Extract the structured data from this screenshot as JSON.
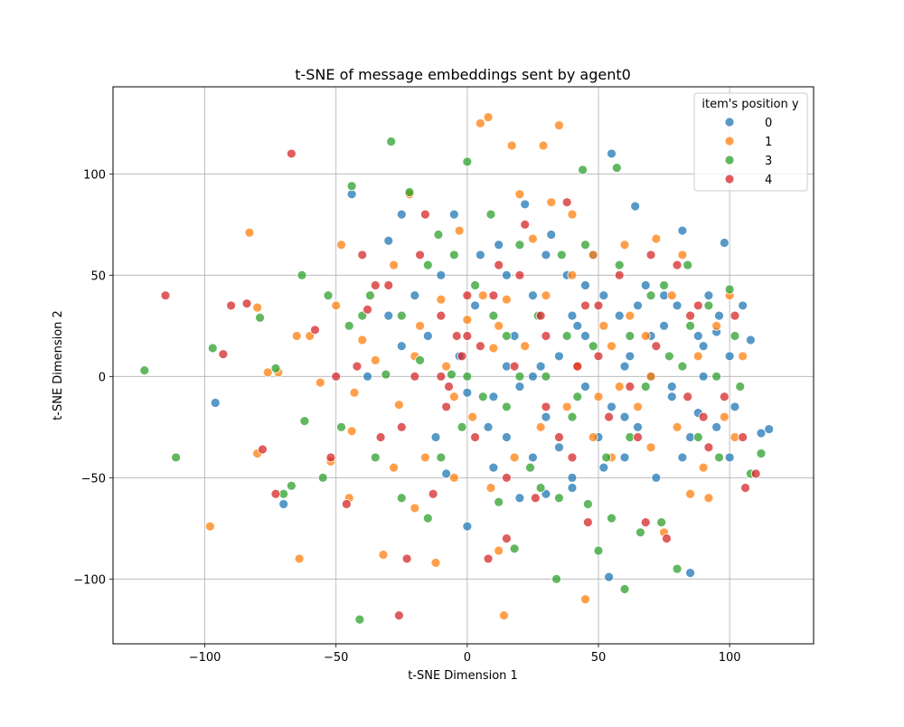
{
  "chart_data": {
    "type": "scatter",
    "title": "t-SNE of message embeddings sent by agent0",
    "xlabel": "t-SNE Dimension 1",
    "ylabel": "t-SNE Dimension 2",
    "xlim": [
      -135,
      132
    ],
    "ylim": [
      -132,
      143
    ],
    "xticks": [
      -100,
      -50,
      0,
      50,
      100
    ],
    "yticks": [
      -100,
      -50,
      0,
      50,
      100
    ],
    "grid": true,
    "legend": {
      "title": "item's position y",
      "placement": "top-right",
      "entries": [
        "0",
        "1",
        "3",
        "4"
      ]
    },
    "series": [
      {
        "name": "0",
        "color": "#1f77b4",
        "points": [
          [
            -96,
            -13
          ],
          [
            -70,
            -63
          ],
          [
            -44,
            90
          ],
          [
            -30,
            67
          ],
          [
            -25,
            80
          ],
          [
            -10,
            50
          ],
          [
            -5,
            80
          ],
          [
            -3,
            10
          ],
          [
            0,
            -8
          ],
          [
            3,
            35
          ],
          [
            8,
            -25
          ],
          [
            10,
            -10
          ],
          [
            12,
            65
          ],
          [
            15,
            50
          ],
          [
            15,
            -30
          ],
          [
            18,
            20
          ],
          [
            20,
            -5
          ],
          [
            22,
            85
          ],
          [
            25,
            40
          ],
          [
            25,
            -40
          ],
          [
            28,
            5
          ],
          [
            30,
            -20
          ],
          [
            32,
            70
          ],
          [
            35,
            10
          ],
          [
            35,
            -35
          ],
          [
            38,
            50
          ],
          [
            40,
            -50
          ],
          [
            42,
            25
          ],
          [
            45,
            -5
          ],
          [
            48,
            60
          ],
          [
            50,
            -30
          ],
          [
            52,
            40
          ],
          [
            55,
            110
          ],
          [
            55,
            -15
          ],
          [
            58,
            30
          ],
          [
            60,
            -40
          ],
          [
            62,
            10
          ],
          [
            64,
            84
          ],
          [
            65,
            -25
          ],
          [
            68,
            45
          ],
          [
            70,
            0
          ],
          [
            72,
            -50
          ],
          [
            75,
            25
          ],
          [
            78,
            -10
          ],
          [
            80,
            35
          ],
          [
            82,
            72
          ],
          [
            85,
            -30
          ],
          [
            88,
            20
          ],
          [
            90,
            0
          ],
          [
            92,
            40
          ],
          [
            95,
            -25
          ],
          [
            98,
            66
          ],
          [
            100,
            10
          ],
          [
            102,
            -15
          ],
          [
            105,
            35
          ],
          [
            108,
            18
          ],
          [
            112,
            -28
          ],
          [
            115,
            -26
          ],
          [
            85,
            -97
          ],
          [
            54,
            -99
          ],
          [
            40,
            -55
          ],
          [
            30,
            -58
          ],
          [
            -30,
            30
          ],
          [
            -20,
            40
          ],
          [
            -15,
            20
          ],
          [
            -12,
            -30
          ],
          [
            5,
            60
          ],
          [
            20,
            -60
          ],
          [
            45,
            45
          ],
          [
            60,
            -20
          ],
          [
            70,
            20
          ],
          [
            78,
            -5
          ],
          [
            88,
            -18
          ],
          [
            95,
            22
          ],
          [
            -38,
            0
          ],
          [
            -25,
            15
          ],
          [
            0,
            -74
          ],
          [
            15,
            5
          ],
          [
            30,
            60
          ],
          [
            45,
            20
          ],
          [
            60,
            5
          ],
          [
            75,
            40
          ],
          [
            90,
            15
          ],
          [
            100,
            -40
          ],
          [
            -8,
            -48
          ],
          [
            10,
            -45
          ],
          [
            25,
            0
          ],
          [
            40,
            30
          ],
          [
            52,
            -45
          ],
          [
            65,
            35
          ],
          [
            82,
            -40
          ],
          [
            96,
            30
          ]
        ]
      },
      {
        "name": "1",
        "color": "#ff7f0e",
        "points": [
          [
            -98,
            -74
          ],
          [
            -83,
            71
          ],
          [
            -80,
            34
          ],
          [
            -76,
            2
          ],
          [
            -72,
            2
          ],
          [
            -80,
            -38
          ],
          [
            -65,
            20
          ],
          [
            -64,
            -90
          ],
          [
            -56,
            -3
          ],
          [
            -52,
            -42
          ],
          [
            -48,
            65
          ],
          [
            -45,
            -60
          ],
          [
            -44,
            -27
          ],
          [
            -40,
            18
          ],
          [
            -32,
            -88
          ],
          [
            -28,
            55
          ],
          [
            -26,
            -14
          ],
          [
            -22,
            90
          ],
          [
            -20,
            10
          ],
          [
            -16,
            -40
          ],
          [
            -12,
            -92
          ],
          [
            -10,
            38
          ],
          [
            -8,
            5
          ],
          [
            -5,
            -50
          ],
          [
            -3,
            72
          ],
          [
            0,
            28
          ],
          [
            2,
            -20
          ],
          [
            5,
            125
          ],
          [
            8,
            128
          ],
          [
            9,
            -55
          ],
          [
            10,
            14
          ],
          [
            12,
            -86
          ],
          [
            14,
            -118
          ],
          [
            15,
            38
          ],
          [
            17,
            114
          ],
          [
            18,
            -40
          ],
          [
            22,
            15
          ],
          [
            25,
            68
          ],
          [
            28,
            -25
          ],
          [
            29,
            114
          ],
          [
            32,
            86
          ],
          [
            35,
            124
          ],
          [
            38,
            -15
          ],
          [
            40,
            50
          ],
          [
            42,
            5
          ],
          [
            45,
            -110
          ],
          [
            48,
            60
          ],
          [
            50,
            -10
          ],
          [
            52,
            25
          ],
          [
            55,
            -40
          ],
          [
            58,
            -5
          ],
          [
            62,
            30
          ],
          [
            65,
            -15
          ],
          [
            70,
            0
          ],
          [
            72,
            68
          ],
          [
            75,
            -77
          ],
          [
            78,
            40
          ],
          [
            82,
            60
          ],
          [
            85,
            -58
          ],
          [
            88,
            10
          ],
          [
            92,
            -60
          ],
          [
            95,
            25
          ],
          [
            98,
            -20
          ],
          [
            102,
            -30
          ],
          [
            105,
            10
          ],
          [
            -60,
            20
          ],
          [
            -50,
            35
          ],
          [
            -35,
            8
          ],
          [
            -18,
            25
          ],
          [
            -5,
            -10
          ],
          [
            20,
            90
          ],
          [
            60,
            65
          ],
          [
            80,
            -25
          ],
          [
            -43,
            -8
          ],
          [
            -28,
            -45
          ],
          [
            6,
            40
          ],
          [
            30,
            40
          ],
          [
            48,
            -30
          ],
          [
            68,
            20
          ],
          [
            90,
            -45
          ],
          [
            -20,
            -65
          ],
          [
            12,
            25
          ],
          [
            40,
            80
          ],
          [
            55,
            15
          ],
          [
            70,
            -35
          ],
          [
            100,
            40
          ]
        ]
      },
      {
        "name": "3",
        "color": "#2ca02c",
        "points": [
          [
            -123,
            3
          ],
          [
            -111,
            -40
          ],
          [
            -97,
            14
          ],
          [
            -79,
            29
          ],
          [
            -73,
            4
          ],
          [
            -70,
            -58
          ],
          [
            -67,
            -54
          ],
          [
            -63,
            50
          ],
          [
            -62,
            -22
          ],
          [
            -53,
            40
          ],
          [
            -48,
            -25
          ],
          [
            -44,
            94
          ],
          [
            -41,
            -120
          ],
          [
            -37,
            40
          ],
          [
            -31,
            1
          ],
          [
            -29,
            116
          ],
          [
            -25,
            -60
          ],
          [
            -22,
            91
          ],
          [
            -18,
            8
          ],
          [
            -15,
            -70
          ],
          [
            -11,
            70
          ],
          [
            -6,
            1
          ],
          [
            -2,
            -25
          ],
          [
            0,
            106
          ],
          [
            3,
            45
          ],
          [
            6,
            -10
          ],
          [
            9,
            80
          ],
          [
            12,
            -62
          ],
          [
            15,
            20
          ],
          [
            18,
            -85
          ],
          [
            20,
            65
          ],
          [
            24,
            -45
          ],
          [
            27,
            30
          ],
          [
            30,
            0
          ],
          [
            34,
            -100
          ],
          [
            36,
            60
          ],
          [
            40,
            -20
          ],
          [
            44,
            102
          ],
          [
            46,
            -63
          ],
          [
            48,
            15
          ],
          [
            50,
            -86
          ],
          [
            53,
            -40
          ],
          [
            57,
            103
          ],
          [
            60,
            -105
          ],
          [
            62,
            20
          ],
          [
            66,
            -77
          ],
          [
            70,
            40
          ],
          [
            74,
            -72
          ],
          [
            77,
            10
          ],
          [
            80,
            -95
          ],
          [
            84,
            55
          ],
          [
            88,
            -30
          ],
          [
            92,
            35
          ],
          [
            96,
            -40
          ],
          [
            100,
            43
          ],
          [
            104,
            -5
          ],
          [
            108,
            -48
          ],
          [
            112,
            -38
          ],
          [
            -40,
            30
          ],
          [
            -25,
            30
          ],
          [
            -10,
            -40
          ],
          [
            10,
            30
          ],
          [
            35,
            -60
          ],
          [
            55,
            -70
          ],
          [
            75,
            45
          ],
          [
            95,
            0
          ],
          [
            -55,
            -50
          ],
          [
            -35,
            -40
          ],
          [
            0,
            0
          ],
          [
            28,
            -55
          ],
          [
            45,
            65
          ],
          [
            68,
            -5
          ],
          [
            85,
            25
          ],
          [
            -5,
            60
          ],
          [
            20,
            0
          ],
          [
            42,
            -10
          ],
          [
            62,
            -30
          ],
          [
            82,
            5
          ],
          [
            102,
            20
          ],
          [
            -45,
            25
          ],
          [
            -15,
            55
          ],
          [
            15,
            -15
          ],
          [
            38,
            20
          ],
          [
            58,
            55
          ]
        ]
      },
      {
        "name": "4",
        "color": "#d62728",
        "points": [
          [
            -115,
            40
          ],
          [
            -93,
            11
          ],
          [
            -90,
            35
          ],
          [
            -84,
            36
          ],
          [
            -78,
            -36
          ],
          [
            -73,
            -58
          ],
          [
            -67,
            110
          ],
          [
            -58,
            23
          ],
          [
            -52,
            -40
          ],
          [
            -46,
            -63
          ],
          [
            -42,
            5
          ],
          [
            -38,
            33
          ],
          [
            -33,
            -30
          ],
          [
            -30,
            45
          ],
          [
            -26,
            -118
          ],
          [
            -23,
            -90
          ],
          [
            -20,
            0
          ],
          [
            -16,
            80
          ],
          [
            -13,
            -58
          ],
          [
            -10,
            30
          ],
          [
            -7,
            -5
          ],
          [
            -4,
            20
          ],
          [
            -2,
            10
          ],
          [
            0,
            40
          ],
          [
            3,
            -30
          ],
          [
            5,
            15
          ],
          [
            8,
            -90
          ],
          [
            12,
            55
          ],
          [
            15,
            -80
          ],
          [
            18,
            5
          ],
          [
            22,
            75
          ],
          [
            26,
            -60
          ],
          [
            30,
            20
          ],
          [
            35,
            -30
          ],
          [
            38,
            86
          ],
          [
            42,
            5
          ],
          [
            46,
            -72
          ],
          [
            50,
            35
          ],
          [
            54,
            -20
          ],
          [
            58,
            50
          ],
          [
            62,
            -5
          ],
          [
            68,
            -72
          ],
          [
            72,
            15
          ],
          [
            76,
            -80
          ],
          [
            80,
            55
          ],
          [
            84,
            -10
          ],
          [
            88,
            35
          ],
          [
            92,
            -35
          ],
          [
            98,
            -10
          ],
          [
            102,
            30
          ],
          [
            106,
            -55
          ],
          [
            110,
            -48
          ],
          [
            -50,
            0
          ],
          [
            -35,
            45
          ],
          [
            -25,
            -25
          ],
          [
            -8,
            -15
          ],
          [
            10,
            40
          ],
          [
            28,
            30
          ],
          [
            45,
            35
          ],
          [
            65,
            -30
          ],
          [
            85,
            30
          ],
          [
            -18,
            60
          ],
          [
            0,
            20
          ],
          [
            15,
            -50
          ],
          [
            30,
            -15
          ],
          [
            50,
            10
          ],
          [
            70,
            60
          ],
          [
            90,
            -20
          ],
          [
            105,
            -30
          ],
          [
            -40,
            60
          ],
          [
            -10,
            0
          ],
          [
            20,
            50
          ],
          [
            40,
            -40
          ]
        ]
      }
    ]
  }
}
